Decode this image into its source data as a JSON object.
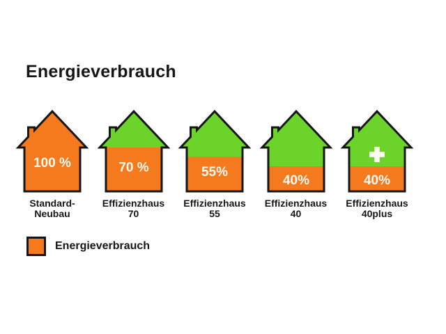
{
  "title": "Energieverbrauch",
  "chart_data": {
    "type": "bar",
    "title": "Energieverbrauch",
    "categories": [
      "Standard-Neubau",
      "Effizienzhaus 70",
      "Effizienzhaus 55",
      "Effizienzhaus 40",
      "Effizienzhaus 40plus"
    ],
    "values": [
      100,
      70,
      55,
      40,
      40
    ],
    "unit": "%",
    "value_labels": [
      "100 %",
      "70 %",
      "55%",
      "40%",
      "40%"
    ],
    "legend": [
      "Energieverbrauch"
    ],
    "legend_position": "bottom-left",
    "annotations": "Effizienzhaus 40plus carries a white plus sign in the green roof area; orange fill level of each house pictogram encodes energy consumption"
  },
  "houses": [
    {
      "id": "standard-neubau",
      "label_lines": [
        "Standard-",
        "Neubau"
      ],
      "percent": 100,
      "percent_label": "100 %",
      "plus": false
    },
    {
      "id": "effizienzhaus-70",
      "label_lines": [
        "Effizienzhaus",
        "70"
      ],
      "percent": 70,
      "percent_label": "70 %",
      "plus": false
    },
    {
      "id": "effizienzhaus-55",
      "label_lines": [
        "Effizienzhaus",
        "55"
      ],
      "percent": 55,
      "percent_label": "55%",
      "plus": false
    },
    {
      "id": "effizienzhaus-40",
      "label_lines": [
        "Effizienzhaus",
        "40"
      ],
      "percent": 40,
      "percent_label": "40%",
      "plus": false
    },
    {
      "id": "effizienzhaus-40plus",
      "label_lines": [
        "Effizienzhaus",
        "40plus"
      ],
      "percent": 40,
      "percent_label": "40%",
      "plus": true
    }
  ],
  "legend": {
    "label": "Energieverbrauch"
  },
  "colors": {
    "orange": "#F5791D",
    "green": "#6CD32B",
    "outline": "#151515",
    "percent_text": "#FFFBF2",
    "label_text": "#161616",
    "background": "#FFFFFF"
  }
}
